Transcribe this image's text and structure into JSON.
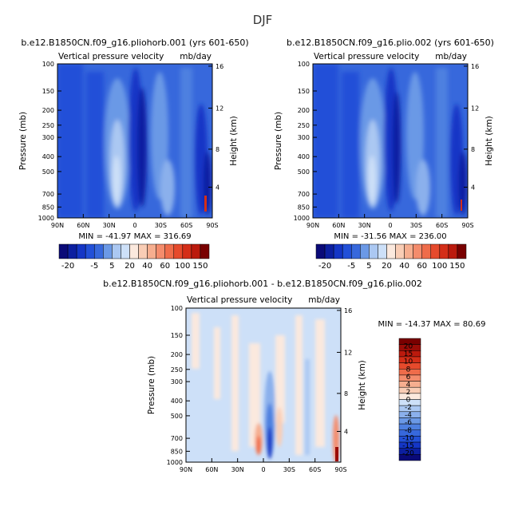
{
  "page_title": "DJF",
  "colors": {
    "neg": [
      "#0a0a78",
      "#0c1fa0",
      "#1436c6",
      "#2250d8",
      "#3768dc",
      "#4e80e0",
      "#6b99e6",
      "#8bb0ec",
      "#abc8f2",
      "#cde0f8"
    ],
    "pos": [
      "#fbe9de",
      "#f9cdb5",
      "#f6ae8f",
      "#f48c6c",
      "#ef6c4a",
      "#e64a2c",
      "#d42e18",
      "#bb1a0d",
      "#9a0c07",
      "#790000"
    ]
  },
  "chart_data": [
    {
      "type": "heatmap",
      "title": "b.e12.B1850CN.f09_g16.pliohorb.001 (yrs 601-650)",
      "subtitle": "Vertical pressure velocity",
      "units": "mb/day",
      "xlabel": "",
      "ylabel": "Pressure (mb)",
      "ylabel_right": "Height (km)",
      "x_ticks": [
        "90N",
        "60N",
        "30N",
        "0",
        "30S",
        "60S",
        "90S"
      ],
      "y_ticks": [
        "100",
        "150",
        "200",
        "250",
        "300",
        "400",
        "500",
        "700",
        "850",
        "1000"
      ],
      "y_ticks_right": [
        "16",
        "12",
        "8",
        "4"
      ],
      "x_range": [
        90,
        -90
      ],
      "y_range": [
        100,
        1000
      ],
      "stats": "MIN = -41.97   MAX = 316.69",
      "colorbar": {
        "orientation": "horizontal",
        "labels": [
          "-20",
          "-5",
          "5",
          "20",
          "40",
          "60",
          "100",
          "150"
        ],
        "levels": [
          -20,
          -15,
          -10,
          -5,
          0,
          5,
          10,
          15,
          20,
          30,
          40,
          50,
          60,
          80,
          100,
          125,
          150
        ]
      }
    },
    {
      "type": "heatmap",
      "title": "b.e12.B1850CN.f09_g16.plio.002 (yrs 601-650)",
      "subtitle": "Vertical pressure velocity",
      "units": "mb/day",
      "xlabel": "",
      "ylabel": "Pressure (mb)",
      "ylabel_right": "Height (km)",
      "x_ticks": [
        "90N",
        "60N",
        "30N",
        "0",
        "30S",
        "60S",
        "90S"
      ],
      "y_ticks": [
        "100",
        "150",
        "200",
        "250",
        "300",
        "400",
        "500",
        "700",
        "850",
        "1000"
      ],
      "y_ticks_right": [
        "16",
        "12",
        "8",
        "4"
      ],
      "x_range": [
        90,
        -90
      ],
      "y_range": [
        100,
        1000
      ],
      "stats": "MIN = -31.56   MAX = 236.00",
      "colorbar": {
        "orientation": "horizontal",
        "labels": [
          "-20",
          "-5",
          "5",
          "20",
          "40",
          "60",
          "100",
          "150"
        ],
        "levels": [
          -20,
          -15,
          -10,
          -5,
          0,
          5,
          10,
          15,
          20,
          30,
          40,
          50,
          60,
          80,
          100,
          125,
          150
        ]
      }
    },
    {
      "type": "heatmap",
      "title": "b.e12.B1850CN.f09_g16.pliohorb.001 - b.e12.B1850CN.f09_g16.plio.002",
      "subtitle": "Vertical pressure velocity",
      "units": "mb/day",
      "xlabel": "",
      "ylabel": "Pressure (mb)",
      "ylabel_right": "Height (km)",
      "x_ticks": [
        "90N",
        "60N",
        "30N",
        "0",
        "30S",
        "60S",
        "90S"
      ],
      "y_ticks": [
        "100",
        "150",
        "200",
        "250",
        "300",
        "400",
        "500",
        "700",
        "850",
        "1000"
      ],
      "y_ticks_right": [
        "16",
        "12",
        "8",
        "4"
      ],
      "x_range": [
        90,
        -90
      ],
      "y_range": [
        100,
        1000
      ],
      "stats": "MIN = -14.37   MAX = 80.69",
      "colorbar": {
        "orientation": "vertical",
        "labels": [
          "20",
          "15",
          "10",
          "8",
          "6",
          "4",
          "2",
          "0",
          "-2",
          "-4",
          "-6",
          "-8",
          "-10",
          "-15",
          "-20"
        ],
        "levels": [
          -20,
          -15,
          -10,
          -8,
          -6,
          -4,
          -2,
          0,
          2,
          4,
          6,
          8,
          10,
          15,
          20
        ]
      }
    }
  ]
}
